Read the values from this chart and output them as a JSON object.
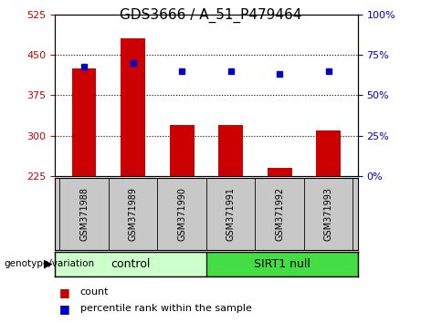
{
  "title": "GDS3666 / A_51_P479464",
  "samples": [
    "GSM371988",
    "GSM371989",
    "GSM371990",
    "GSM371991",
    "GSM371992",
    "GSM371993"
  ],
  "counts": [
    425,
    480,
    320,
    320,
    240,
    310
  ],
  "percentiles": [
    68,
    70,
    65,
    65,
    63,
    65
  ],
  "ylim": [
    225,
    525
  ],
  "yticks": [
    225,
    300,
    375,
    450,
    525
  ],
  "right_ylim": [
    0,
    100
  ],
  "right_yticks": [
    0,
    25,
    50,
    75,
    100
  ],
  "groups": [
    {
      "label": "control",
      "indices": [
        0,
        1,
        2
      ],
      "color": "#CCFFCC"
    },
    {
      "label": "SIRT1 null",
      "indices": [
        3,
        4,
        5
      ],
      "color": "#44DD44"
    }
  ],
  "bar_color": "#CC0000",
  "dot_color": "#0000CC",
  "label_bg_color": "#C8C8C8",
  "genotype_label": "genotype/variation",
  "legend_count_color": "#CC0000",
  "legend_percentile_color": "#0000CC",
  "legend_count_label": "count",
  "legend_percentile_label": "percentile rank within the sample",
  "grid_lines": [
    300,
    375,
    450
  ],
  "bar_width": 0.5
}
